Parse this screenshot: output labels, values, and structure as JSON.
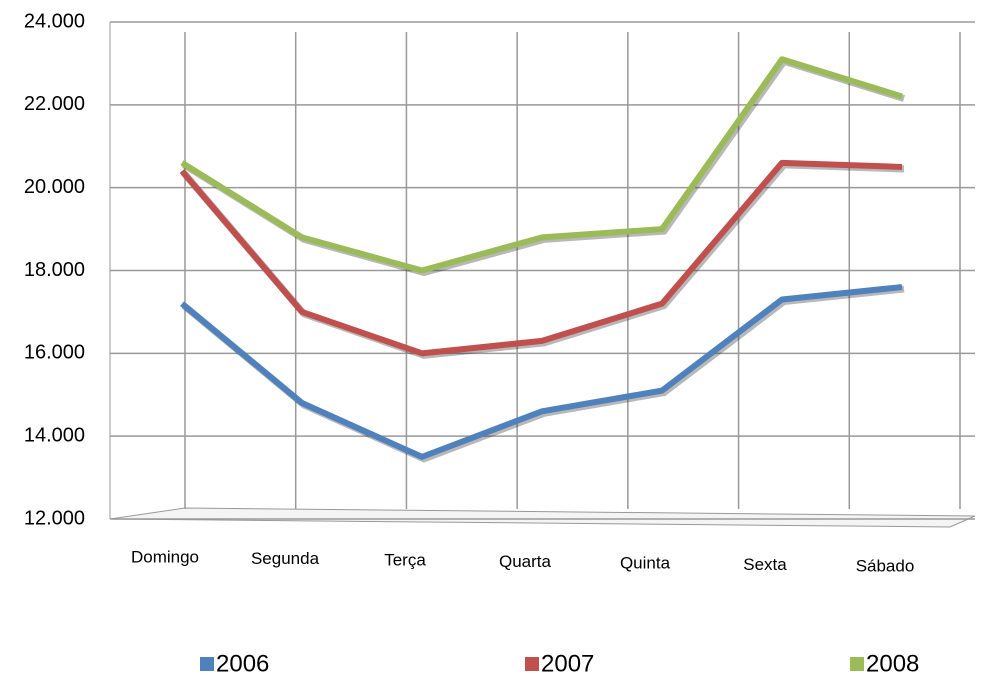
{
  "chart_data": {
    "type": "line",
    "categories": [
      "Domingo",
      "Segunda",
      "Terça",
      "Quarta",
      "Quinta",
      "Sexta",
      "Sábado"
    ],
    "series": [
      {
        "name": "2006",
        "color": "#4f81bd",
        "values": [
          17200,
          14800,
          13500,
          14600,
          15100,
          17300,
          17600
        ]
      },
      {
        "name": "2007",
        "color": "#c0504d",
        "values": [
          20400,
          17000,
          16000,
          16300,
          17200,
          20600,
          20500
        ]
      },
      {
        "name": "2008",
        "color": "#9bbb59",
        "values": [
          20600,
          18800,
          18000,
          18800,
          19000,
          23100,
          22200
        ]
      }
    ],
    "ylim": [
      12000,
      24000
    ],
    "yticks": [
      {
        "value": 12000,
        "label": "12.000"
      },
      {
        "value": 14000,
        "label": "14.000"
      },
      {
        "value": 16000,
        "label": "16.000"
      },
      {
        "value": 18000,
        "label": "18.000"
      },
      {
        "value": 20000,
        "label": "20.000"
      },
      {
        "value": 22000,
        "label": "22.000"
      },
      {
        "value": 24000,
        "label": "24.000"
      }
    ],
    "grid": true,
    "legend": "bottom"
  }
}
